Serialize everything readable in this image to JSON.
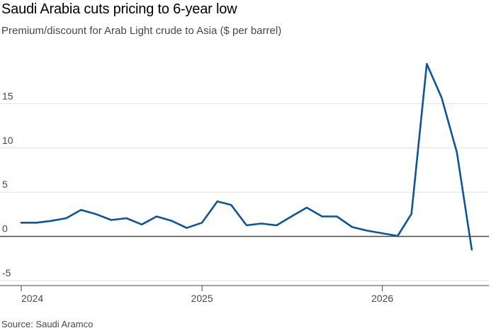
{
  "header": {
    "title": "Saudi Arabia cuts pricing to 6-year low",
    "subtitle": "Premium/discount for Arab Light crude to Asia ($ per barrel)"
  },
  "footer": {
    "source": "Source: Saudi Aramco"
  },
  "colors": {
    "line": "#0f5499",
    "grid": "#e5dfd7",
    "zero_line": "#4a4745",
    "axis_text": "#4a4745"
  },
  "chart_data": {
    "type": "line",
    "title": "Saudi Arabia cuts pricing to 6-year low",
    "subtitle": "Premium/discount for Arab Light crude to Asia ($ per barrel)",
    "xlabel": "",
    "ylabel": "",
    "ylim": [
      -5,
      20
    ],
    "yticks": [
      -5,
      0,
      5,
      10,
      15
    ],
    "ytick_labels": [
      "-5",
      "0",
      "5",
      "10",
      "15"
    ],
    "xlim": [
      "2024-01-01",
      "2026-07-20"
    ],
    "xticks": [
      "2024-01-01",
      "2025-01-01",
      "2026-01-01"
    ],
    "xtick_labels": [
      "2024",
      "2025",
      "2026"
    ],
    "grid": true,
    "series": [
      {
        "x": [
          "2024-01-01",
          "2024-02-01",
          "2024-03-01",
          "2024-04-01",
          "2024-05-01",
          "2024-06-01",
          "2024-07-01",
          "2024-08-01",
          "2024-09-01",
          "2024-10-01",
          "2024-11-01",
          "2024-12-01",
          "2025-01-01",
          "2025-02-01",
          "2025-03-01",
          "2025-04-01",
          "2025-05-01",
          "2025-06-01",
          "2025-07-01",
          "2025-08-01",
          "2025-09-01",
          "2025-10-01",
          "2025-11-01",
          "2025-12-01",
          "2026-02-01",
          "2026-03-01",
          "2026-04-01",
          "2026-05-01",
          "2026-06-01",
          "2026-07-01"
        ],
        "values": [
          1.55,
          1.55,
          1.75,
          2.05,
          3.0,
          2.5,
          1.85,
          2.05,
          1.35,
          2.25,
          1.75,
          0.95,
          1.55,
          3.95,
          3.55,
          1.25,
          1.45,
          1.25,
          2.25,
          3.25,
          2.25,
          2.25,
          1.05,
          0.65,
          0.05,
          2.55,
          19.5,
          15.7,
          9.5,
          -1.5
        ]
      }
    ]
  }
}
